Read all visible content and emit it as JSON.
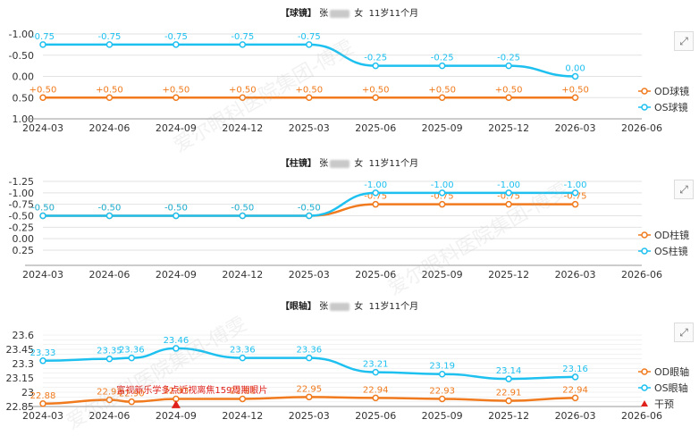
{
  "panels": [
    {
      "title_bracket": "【球镜】",
      "title_name": "张",
      "title_gender": "女",
      "title_age": "11岁11个月"
    },
    {
      "title_bracket": "【柱镜】",
      "title_name": "张",
      "title_gender": "女",
      "title_age": "11岁11个月"
    },
    {
      "title_bracket": "【眼轴】",
      "title_name": "张",
      "title_gender": "女",
      "title_age": "11岁11个月"
    }
  ],
  "watermark_text": "爱尔眼科医院集团-傅雯",
  "colors": {
    "od": "#f07a1d",
    "os": "#1ec0f0",
    "intervention": "#e0201a"
  },
  "chart_data": [
    {
      "type": "line",
      "title": "【球镜】",
      "x_ticks": [
        "2024-03",
        "2024-06",
        "2024-09",
        "2024-12",
        "2025-03",
        "2025-06",
        "2025-09",
        "2025-12",
        "2026-03",
        "2026-06"
      ],
      "y_ticks": [
        "-1.00",
        "-0.50",
        "0.00",
        "0.50",
        "1.00"
      ],
      "y_reversed": true,
      "ylim": [
        -1.0,
        1.0
      ],
      "x": [
        "2024-03",
        "2024-06",
        "2024-09",
        "2024-12",
        "2025-03",
        "2025-06",
        "2025-09",
        "2025-12",
        "2026-03"
      ],
      "series": [
        {
          "name": "OD球镜",
          "values": [
            0.5,
            0.5,
            0.5,
            0.5,
            0.5,
            0.5,
            0.5,
            0.5,
            0.5
          ],
          "labels": [
            "+0.50",
            "+0.50",
            "+0.50",
            "+0.50",
            "+0.50",
            "+0.50",
            "+0.50",
            "+0.50",
            "+0.50"
          ]
        },
        {
          "name": "OS球镜",
          "values": [
            -0.75,
            -0.75,
            -0.75,
            -0.75,
            -0.75,
            -0.25,
            -0.25,
            -0.25,
            0.0
          ],
          "labels": [
            "-0.75",
            "-0.75",
            "-0.75",
            "-0.75",
            "-0.75",
            "-0.25",
            "-0.25",
            "-0.25",
            "0.00"
          ]
        }
      ]
    },
    {
      "type": "line",
      "title": "【柱镜】",
      "x_ticks": [
        "2024-03",
        "2024-06",
        "2024-09",
        "2024-12",
        "2025-03",
        "2025-06",
        "2025-09",
        "2025-12",
        "2026-03",
        "2026-06"
      ],
      "y_ticks": [
        "-1.25",
        "-1.00",
        "-0.75",
        "-0.50",
        "-0.25",
        "0.00",
        "0.25"
      ],
      "y_reversed": true,
      "ylim": [
        -1.25,
        0.25
      ],
      "x": [
        "2024-03",
        "2024-06",
        "2024-09",
        "2024-12",
        "2025-03",
        "2025-06",
        "2025-09",
        "2025-12",
        "2026-03"
      ],
      "series": [
        {
          "name": "OD柱镜",
          "values": [
            -0.5,
            -0.5,
            -0.5,
            -0.5,
            -0.5,
            -0.75,
            -0.75,
            -0.75,
            -0.75
          ],
          "labels": [
            "-0.50",
            "-0.50",
            "-0.50",
            "-0.50",
            "-0.50",
            "-0.75",
            "-0.75",
            "-0.75",
            "-0.75"
          ]
        },
        {
          "name": "OS柱镜",
          "values": [
            -0.5,
            -0.5,
            -0.5,
            -0.5,
            -0.5,
            -1.0,
            -1.0,
            -1.0,
            -1.0
          ],
          "labels": [
            "-0.50",
            "-0.50",
            "-0.50",
            "-0.50",
            "-0.50",
            "-1.00",
            "-1.00",
            "-1.00",
            "-1.00"
          ]
        }
      ]
    },
    {
      "type": "line",
      "title": "【眼轴】",
      "x_ticks": [
        "2024-03",
        "2024-06",
        "2024-09",
        "2024-12",
        "2025-03",
        "2025-06",
        "2025-09",
        "2025-12",
        "2026-03",
        "2026-06"
      ],
      "y_ticks": [
        "22.85",
        "23",
        "23.15",
        "23.3",
        "23.45",
        "23.6"
      ],
      "y_reversed": false,
      "ylim": [
        22.85,
        23.6
      ],
      "x": [
        "2024-03",
        "2024-06",
        "2024-07",
        "2024-09",
        "2024-12",
        "2025-03",
        "2025-06",
        "2025-09",
        "2025-12",
        "2026-03"
      ],
      "series": [
        {
          "name": "OD眼轴",
          "values": [
            22.88,
            22.92,
            22.9,
            22.93,
            22.93,
            22.95,
            22.94,
            22.93,
            22.91,
            22.94
          ],
          "labels": [
            "22.88",
            "22.92",
            "22.90",
            "22.93",
            "22.93",
            "22.95",
            "22.94",
            "22.93",
            "22.91",
            "22.94"
          ]
        },
        {
          "name": "OS眼轴",
          "values": [
            23.33,
            23.35,
            23.36,
            23.46,
            23.36,
            23.36,
            23.21,
            23.19,
            23.14,
            23.16
          ],
          "labels": [
            "23.33",
            "23.35",
            "23.36",
            "23.46",
            "23.36",
            "23.36",
            "23.21",
            "23.19",
            "23.14",
            "23.16"
          ]
        },
        {
          "name": "干预",
          "values": [
            22.86
          ],
          "x": [
            "2024-09"
          ],
          "annotation": "富视新乐学多点近视离焦159周期眼片"
        }
      ]
    }
  ]
}
